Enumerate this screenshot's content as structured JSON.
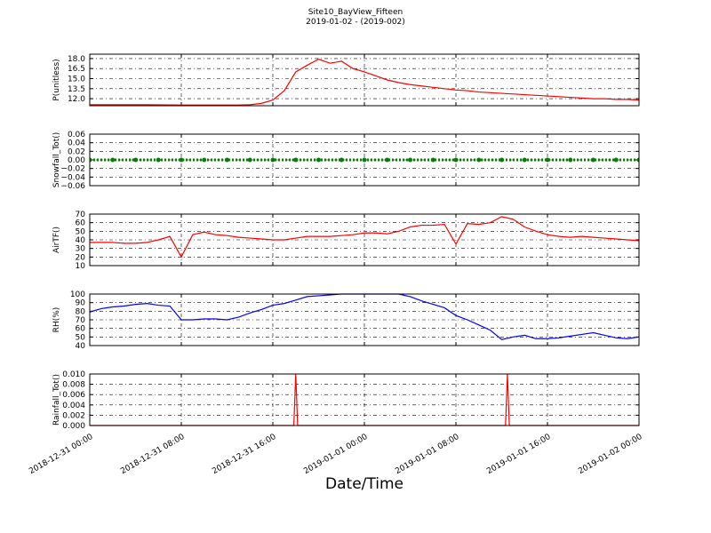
{
  "chart_data": [
    {
      "type": "line",
      "title": "Site10_BayView_Fifteen",
      "subtitle": "2019-01-02 - (2019-002)",
      "ylabel": "P(unitless)",
      "color": "#ff0000",
      "grid": true,
      "xlim": [
        "2018-12-31 00:00",
        "2019-01-02 00:00"
      ],
      "xticks": [
        "2018-12-31 00:00",
        "2018-12-31 08:00",
        "2018-12-31 16:00",
        "2019-01-01 00:00",
        "2019-01-01 08:00",
        "2019-01-01 16:00",
        "2019-01-02 00:00"
      ],
      "ylim": [
        10.95,
        18.65
      ],
      "yticks": [
        {
          "value": 12,
          "label": "12.0"
        },
        13.5,
        {
          "value": 15,
          "label": "15.0"
        },
        16.5,
        {
          "value": 18,
          "label": "18.0"
        }
      ],
      "x": [
        "2018-12-31 00:00",
        "2018-12-31 01:00",
        "2018-12-31 02:00",
        "2018-12-31 03:00",
        "2018-12-31 04:00",
        "2018-12-31 05:00",
        "2018-12-31 06:00",
        "2018-12-31 07:00",
        "2018-12-31 08:00",
        "2018-12-31 09:00",
        "2018-12-31 10:00",
        "2018-12-31 11:00",
        "2018-12-31 12:00",
        "2018-12-31 13:00",
        "2018-12-31 14:00",
        "2018-12-31 15:00",
        "2018-12-31 16:00",
        "2018-12-31 17:00",
        "2018-12-31 18:00",
        "2018-12-31 19:00",
        "2018-12-31 20:00",
        "2018-12-31 21:00",
        "2018-12-31 22:00",
        "2018-12-31 23:00",
        "2019-01-01 00:00",
        "2019-01-01 01:00",
        "2019-01-01 02:00",
        "2019-01-01 03:00",
        "2019-01-01 04:00",
        "2019-01-01 05:00",
        "2019-01-01 06:00",
        "2019-01-01 07:00",
        "2019-01-01 08:00",
        "2019-01-01 09:00",
        "2019-01-01 10:00",
        "2019-01-01 11:00",
        "2019-01-01 12:00",
        "2019-01-01 13:00",
        "2019-01-01 14:00",
        "2019-01-01 15:00",
        "2019-01-01 16:00",
        "2019-01-01 17:00",
        "2019-01-01 18:00",
        "2019-01-01 19:00",
        "2019-01-01 20:00",
        "2019-01-01 21:00",
        "2019-01-01 22:00",
        "2019-01-01 23:00",
        "2019-01-02 00:00"
      ],
      "values": [
        11.1,
        11.1,
        11.1,
        11.1,
        11.1,
        11.1,
        11.08,
        11.07,
        11.06,
        11.06,
        11.05,
        11.05,
        11.05,
        11.06,
        11.1,
        11.3,
        11.8,
        13.2,
        16.0,
        17.0,
        17.9,
        17.3,
        17.6,
        16.5,
        16.0,
        15.4,
        14.8,
        14.4,
        14.1,
        13.9,
        13.7,
        13.5,
        13.3,
        13.2,
        13.0,
        12.9,
        12.8,
        12.7,
        12.6,
        12.5,
        12.4,
        12.3,
        12.2,
        12.1,
        12.0,
        12.0,
        11.9,
        11.9,
        11.8
      ]
    },
    {
      "type": "line",
      "ylabel": "Snowfall_Tot()",
      "color": "#008000",
      "marker": "o",
      "grid": true,
      "xlim": [
        "2018-12-31 00:00",
        "2019-01-02 00:00"
      ],
      "xticks": [
        "2018-12-31 00:00",
        "2018-12-31 08:00",
        "2018-12-31 16:00",
        "2019-01-01 00:00",
        "2019-01-01 08:00",
        "2019-01-01 16:00",
        "2019-01-02 00:00"
      ],
      "ylim": [
        -0.06,
        0.06
      ],
      "yticks": [
        {
          "value": -0.06,
          "label": "−0.06"
        },
        {
          "value": -0.04,
          "label": "−0.04"
        },
        {
          "value": -0.02,
          "label": "−0.02"
        },
        {
          "value": 0,
          "label": "0.00"
        },
        0.02,
        0.04,
        0.06
      ],
      "x": [
        "2018-12-31 00:00",
        "2018-12-31 02:00",
        "2018-12-31 04:00",
        "2018-12-31 06:00",
        "2018-12-31 08:00",
        "2018-12-31 10:00",
        "2018-12-31 12:00",
        "2018-12-31 14:00",
        "2018-12-31 16:00",
        "2018-12-31 18:00",
        "2018-12-31 20:00",
        "2018-12-31 22:00",
        "2019-01-01 00:00",
        "2019-01-01 02:00",
        "2019-01-01 04:00",
        "2019-01-01 06:00",
        "2019-01-01 08:00",
        "2019-01-01 10:00",
        "2019-01-01 12:00",
        "2019-01-01 14:00",
        "2019-01-01 16:00",
        "2019-01-01 18:00",
        "2019-01-01 20:00",
        "2019-01-01 22:00",
        "2019-01-02 00:00"
      ],
      "values": [
        0,
        0,
        0,
        0,
        0,
        0,
        0,
        0,
        0,
        0,
        0,
        0,
        0,
        0,
        0,
        0,
        0,
        0,
        0,
        0,
        0,
        0,
        0,
        0,
        0
      ]
    },
    {
      "type": "line",
      "ylabel": "AirTF()",
      "color": "#ff0000",
      "grid": true,
      "xlim": [
        "2018-12-31 00:00",
        "2019-01-02 00:00"
      ],
      "xticks": [
        "2018-12-31 00:00",
        "2018-12-31 08:00",
        "2018-12-31 16:00",
        "2019-01-01 00:00",
        "2019-01-01 08:00",
        "2019-01-01 16:00",
        "2019-01-02 00:00"
      ],
      "ylim": [
        10,
        70
      ],
      "yticks": [
        10,
        20,
        30,
        40,
        50,
        60,
        70
      ],
      "x": [
        "2018-12-31 00:00",
        "2018-12-31 01:00",
        "2018-12-31 02:00",
        "2018-12-31 03:00",
        "2018-12-31 04:00",
        "2018-12-31 05:00",
        "2018-12-31 06:00",
        "2018-12-31 07:00",
        "2018-12-31 08:00",
        "2018-12-31 09:00",
        "2018-12-31 10:00",
        "2018-12-31 11:00",
        "2018-12-31 12:00",
        "2018-12-31 13:00",
        "2018-12-31 14:00",
        "2018-12-31 15:00",
        "2018-12-31 16:00",
        "2018-12-31 17:00",
        "2018-12-31 18:00",
        "2018-12-31 19:00",
        "2018-12-31 20:00",
        "2018-12-31 21:00",
        "2018-12-31 22:00",
        "2018-12-31 23:00",
        "2019-01-01 00:00",
        "2019-01-01 01:00",
        "2019-01-01 02:00",
        "2019-01-01 03:00",
        "2019-01-01 04:00",
        "2019-01-01 05:00",
        "2019-01-01 06:00",
        "2019-01-01 07:00",
        "2019-01-01 08:00",
        "2019-01-01 09:00",
        "2019-01-01 10:00",
        "2019-01-01 11:00",
        "2019-01-01 12:00",
        "2019-01-01 13:00",
        "2019-01-01 14:00",
        "2019-01-01 15:00",
        "2019-01-01 16:00",
        "2019-01-01 17:00",
        "2019-01-01 18:00",
        "2019-01-01 19:00",
        "2019-01-01 20:00",
        "2019-01-01 21:00",
        "2019-01-01 22:00",
        "2019-01-01 23:00",
        "2019-01-02 00:00"
      ],
      "values": [
        37,
        37,
        37,
        36,
        36,
        37,
        40,
        44,
        20,
        46,
        49,
        46,
        45,
        43,
        42,
        41,
        40,
        40,
        42,
        44,
        44,
        44,
        45,
        46,
        48,
        48,
        47,
        50,
        55,
        57,
        57,
        58,
        35,
        59,
        58,
        60,
        67,
        64,
        55,
        50,
        46,
        44,
        43,
        44,
        43,
        42,
        41,
        40,
        39
      ]
    },
    {
      "type": "line",
      "ylabel": "RH(%)",
      "color": "#0000ff",
      "grid": true,
      "xlim": [
        "2018-12-31 00:00",
        "2019-01-02 00:00"
      ],
      "xticks": [
        "2018-12-31 00:00",
        "2018-12-31 08:00",
        "2018-12-31 16:00",
        "2019-01-01 00:00",
        "2019-01-01 08:00",
        "2019-01-01 16:00",
        "2019-01-02 00:00"
      ],
      "ylim": [
        40,
        100
      ],
      "yticks": [
        40,
        50,
        60,
        70,
        80,
        90,
        100
      ],
      "x": [
        "2018-12-31 00:00",
        "2018-12-31 01:00",
        "2018-12-31 02:00",
        "2018-12-31 03:00",
        "2018-12-31 04:00",
        "2018-12-31 05:00",
        "2018-12-31 06:00",
        "2018-12-31 07:00",
        "2018-12-31 08:00",
        "2018-12-31 09:00",
        "2018-12-31 10:00",
        "2018-12-31 11:00",
        "2018-12-31 12:00",
        "2018-12-31 13:00",
        "2018-12-31 14:00",
        "2018-12-31 15:00",
        "2018-12-31 16:00",
        "2018-12-31 17:00",
        "2018-12-31 18:00",
        "2018-12-31 19:00",
        "2018-12-31 20:00",
        "2018-12-31 21:00",
        "2018-12-31 22:00",
        "2018-12-31 23:00",
        "2019-01-01 00:00",
        "2019-01-01 01:00",
        "2019-01-01 02:00",
        "2019-01-01 03:00",
        "2019-01-01 04:00",
        "2019-01-01 05:00",
        "2019-01-01 06:00",
        "2019-01-01 07:00",
        "2019-01-01 08:00",
        "2019-01-01 09:00",
        "2019-01-01 10:00",
        "2019-01-01 11:00",
        "2019-01-01 12:00",
        "2019-01-01 13:00",
        "2019-01-01 14:00",
        "2019-01-01 15:00",
        "2019-01-01 16:00",
        "2019-01-01 17:00",
        "2019-01-01 18:00",
        "2019-01-01 19:00",
        "2019-01-01 20:00",
        "2019-01-01 21:00",
        "2019-01-01 22:00",
        "2019-01-01 23:00",
        "2019-01-02 00:00"
      ],
      "values": [
        79,
        83,
        85,
        86,
        88,
        89,
        87,
        86,
        70,
        70,
        71,
        71,
        70,
        73,
        78,
        82,
        87,
        89,
        93,
        97,
        98,
        99,
        100,
        100,
        100,
        100,
        100,
        100,
        97,
        92,
        88,
        84,
        75,
        70,
        64,
        58,
        47,
        50,
        52,
        48,
        48,
        49,
        51,
        53,
        55,
        52,
        49,
        48,
        50
      ]
    },
    {
      "type": "line",
      "ylabel": "Rainfall_Tot()",
      "xlabel": "Date/Time",
      "color": "#ff0000",
      "grid": true,
      "xlim": [
        "2018-12-31 00:00",
        "2019-01-02 00:00"
      ],
      "xticks": [
        "2018-12-31 00:00",
        "2018-12-31 08:00",
        "2018-12-31 16:00",
        "2019-01-01 00:00",
        "2019-01-01 08:00",
        "2019-01-01 16:00",
        "2019-01-02 00:00"
      ],
      "ylim": [
        0,
        0.01
      ],
      "yticks": [
        {
          "value": 0,
          "label": "0.000"
        },
        {
          "value": 0.002,
          "label": "0.002"
        },
        {
          "value": 0.004,
          "label": "0.004"
        },
        {
          "value": 0.006,
          "label": "0.006"
        },
        {
          "value": 0.008,
          "label": "0.008"
        },
        {
          "value": 0.01,
          "label": "0.010"
        }
      ],
      "x": [
        "2018-12-31 00:00",
        "2018-12-31 17:50",
        "2018-12-31 18:00",
        "2018-12-31 18:10",
        "2019-01-01 12:20",
        "2019-01-01 12:30",
        "2019-01-01 12:40",
        "2019-01-02 00:00"
      ],
      "values": [
        0,
        0,
        0.01,
        0,
        0,
        0.01,
        0,
        0
      ]
    }
  ]
}
